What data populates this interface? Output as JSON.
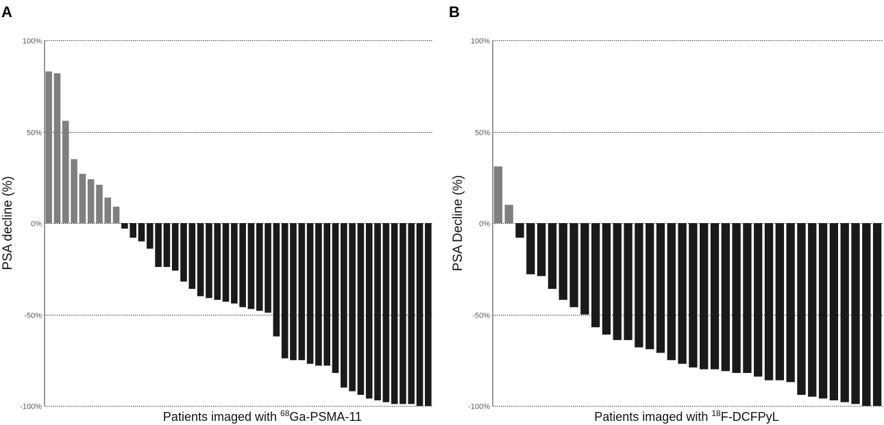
{
  "colors": {
    "increase": "#7f7f7f",
    "decline": "#1a1a1a",
    "grid": "#333333",
    "axis": "#333333"
  },
  "chart_data": [
    {
      "type": "bar",
      "panel_label": "A",
      "ylabel": "PSA decline (%)",
      "xlabel": {
        "prefix": "Patients imaged with ",
        "sup": "68",
        "suffix": "Ga-PSMA-11"
      },
      "ylim": [
        -100,
        100
      ],
      "yticks": [
        100,
        50,
        0,
        -50,
        -100
      ],
      "ytick_labels": [
        "100%",
        "50%",
        "0%",
        "-50%",
        "-100%"
      ],
      "grid": true,
      "values": [
        83,
        82,
        56,
        35,
        27,
        24,
        21,
        14,
        9,
        -3,
        -8,
        -10,
        -14,
        -24,
        -24,
        -26,
        -32,
        -36,
        -40,
        -41,
        -42,
        -43,
        -44,
        -46,
        -47,
        -48,
        -49,
        -62,
        -74,
        -75,
        -75,
        -77,
        -78,
        -78,
        -82,
        -90,
        -92,
        -94,
        -96,
        -97,
        -98,
        -99,
        -99,
        -99,
        -100,
        -100
      ]
    },
    {
      "type": "bar",
      "panel_label": "B",
      "ylabel": "PSA Decline (%)",
      "xlabel": {
        "prefix": "Patients imaged with ",
        "sup": "18",
        "suffix": "F-DCFPyL"
      },
      "ylim": [
        -100,
        100
      ],
      "yticks": [
        100,
        50,
        0,
        -50,
        -100
      ],
      "ytick_labels": [
        "100%",
        "50%",
        "0%",
        "-50%",
        "-100%"
      ],
      "grid": true,
      "values": [
        31,
        10,
        -8,
        -28,
        -29,
        -36,
        -42,
        -46,
        -50,
        -57,
        -61,
        -64,
        -64,
        -68,
        -69,
        -71,
        -75,
        -77,
        -79,
        -80,
        -80,
        -81,
        -82,
        -82,
        -84,
        -86,
        -86,
        -87,
        -94,
        -95,
        -96,
        -97,
        -98,
        -99,
        -100,
        -100
      ]
    }
  ]
}
